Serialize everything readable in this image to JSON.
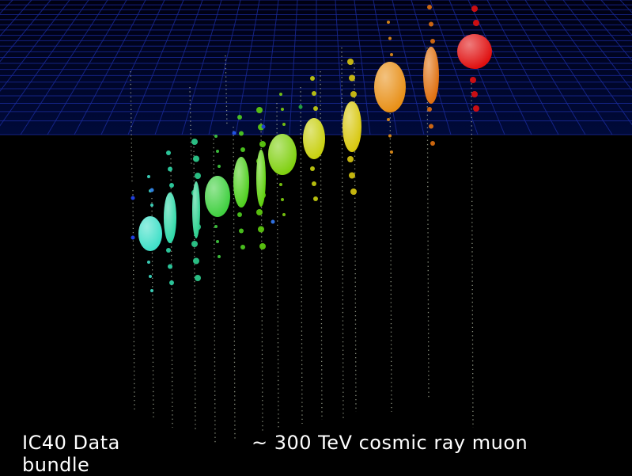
{
  "captions": {
    "left": "IC40 Data bundle",
    "right": "~ 300 TeV cosmic ray muon"
  }
}
